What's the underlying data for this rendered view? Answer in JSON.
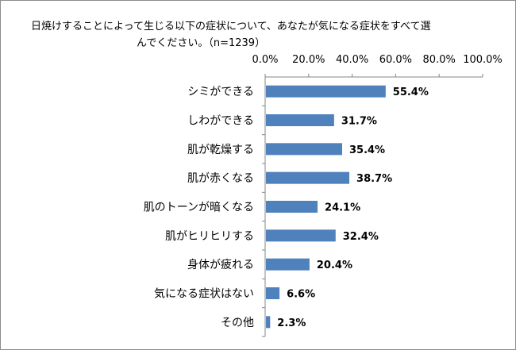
{
  "chart_data": {
    "type": "bar",
    "orientation": "horizontal",
    "title_line1": "日焼けすることによって生じる以下の症状について、あなたが気になる症状をすべて選",
    "title_line2": "んでください。（n=1239）",
    "categories": [
      "シミができる",
      "しわができる",
      "肌が乾燥する",
      "肌が赤くなる",
      "肌のトーンが暗くなる",
      "肌がヒリヒリする",
      "身体が疲れる",
      "気になる症状はない",
      "その他"
    ],
    "values": [
      55.4,
      31.7,
      35.4,
      38.7,
      24.1,
      32.4,
      20.4,
      6.6,
      2.3
    ],
    "value_labels": [
      "55.4%",
      "31.7%",
      "35.4%",
      "38.7%",
      "24.1%",
      "32.4%",
      "20.4%",
      "6.6%",
      "2.3%"
    ],
    "xlim": [
      0,
      100
    ],
    "x_ticks": [
      "0.0%",
      "20.0%",
      "40.0%",
      "60.0%",
      "80.0%",
      "100.0%"
    ],
    "x_tick_values": [
      0,
      20,
      40,
      60,
      80,
      100
    ],
    "axis_position": "top",
    "grid": false,
    "bar_color": "#4f81bd"
  }
}
